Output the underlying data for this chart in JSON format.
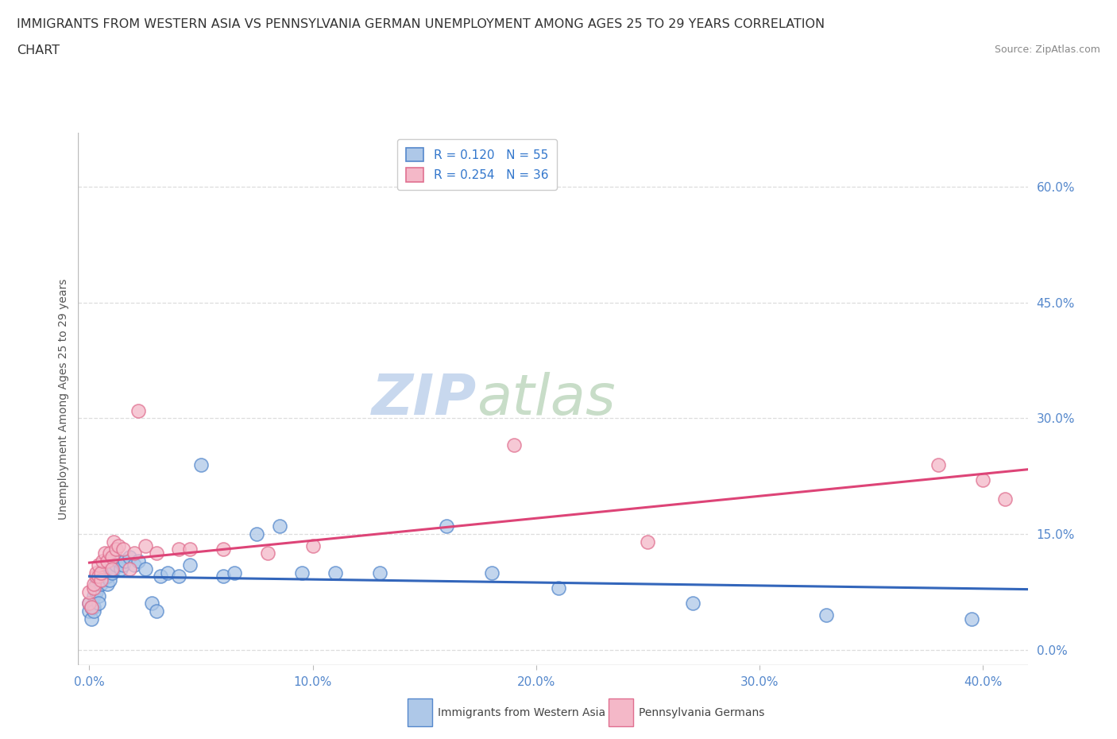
{
  "title_line1": "IMMIGRANTS FROM WESTERN ASIA VS PENNSYLVANIA GERMAN UNEMPLOYMENT AMONG AGES 25 TO 29 YEARS CORRELATION",
  "title_line2": "CHART",
  "source_text": "Source: ZipAtlas.com",
  "xlabel_ticks": [
    "0.0%",
    "10.0%",
    "20.0%",
    "30.0%",
    "40.0%"
  ],
  "xlabel_tick_vals": [
    0.0,
    0.1,
    0.2,
    0.3,
    0.4
  ],
  "ylabel_ticks": [
    "0.0%",
    "15.0%",
    "30.0%",
    "45.0%",
    "60.0%"
  ],
  "ylabel_tick_vals": [
    0.0,
    0.15,
    0.3,
    0.45,
    0.6
  ],
  "ylabel_label": "Unemployment Among Ages 25 to 29 years",
  "xlim": [
    -0.005,
    0.42
  ],
  "ylim": [
    -0.02,
    0.67
  ],
  "watermark_zip": "ZIP",
  "watermark_atlas": "atlas",
  "legend_r1": "R = 0.120",
  "legend_n1": "N = 55",
  "legend_r2": "R = 0.254",
  "legend_n2": "N = 36",
  "blue_fill": "#aec8e8",
  "pink_fill": "#f4b8c8",
  "blue_edge": "#5588cc",
  "pink_edge": "#e07090",
  "blue_line": "#3366bb",
  "pink_line": "#dd4477",
  "legend_text_color": "#333366",
  "legend_n_color": "#3377cc",
  "blue_scatter": [
    [
      0.0,
      0.06
    ],
    [
      0.0,
      0.05
    ],
    [
      0.001,
      0.055
    ],
    [
      0.001,
      0.04
    ],
    [
      0.002,
      0.07
    ],
    [
      0.002,
      0.055
    ],
    [
      0.002,
      0.05
    ],
    [
      0.003,
      0.08
    ],
    [
      0.003,
      0.075
    ],
    [
      0.003,
      0.085
    ],
    [
      0.004,
      0.09
    ],
    [
      0.004,
      0.07
    ],
    [
      0.004,
      0.06
    ],
    [
      0.005,
      0.1
    ],
    [
      0.005,
      0.085
    ],
    [
      0.005,
      0.095
    ],
    [
      0.006,
      0.095
    ],
    [
      0.006,
      0.09
    ],
    [
      0.007,
      0.095
    ],
    [
      0.007,
      0.1
    ],
    [
      0.008,
      0.085
    ],
    [
      0.008,
      0.095
    ],
    [
      0.009,
      0.09
    ],
    [
      0.01,
      0.105
    ],
    [
      0.01,
      0.1
    ],
    [
      0.011,
      0.105
    ],
    [
      0.012,
      0.11
    ],
    [
      0.013,
      0.115
    ],
    [
      0.014,
      0.105
    ],
    [
      0.015,
      0.11
    ],
    [
      0.016,
      0.115
    ],
    [
      0.018,
      0.12
    ],
    [
      0.02,
      0.11
    ],
    [
      0.022,
      0.115
    ],
    [
      0.025,
      0.105
    ],
    [
      0.028,
      0.06
    ],
    [
      0.03,
      0.05
    ],
    [
      0.032,
      0.095
    ],
    [
      0.035,
      0.1
    ],
    [
      0.04,
      0.095
    ],
    [
      0.045,
      0.11
    ],
    [
      0.05,
      0.24
    ],
    [
      0.06,
      0.095
    ],
    [
      0.065,
      0.1
    ],
    [
      0.075,
      0.15
    ],
    [
      0.085,
      0.16
    ],
    [
      0.095,
      0.1
    ],
    [
      0.11,
      0.1
    ],
    [
      0.13,
      0.1
    ],
    [
      0.16,
      0.16
    ],
    [
      0.18,
      0.1
    ],
    [
      0.21,
      0.08
    ],
    [
      0.27,
      0.06
    ],
    [
      0.33,
      0.045
    ],
    [
      0.395,
      0.04
    ]
  ],
  "pink_scatter": [
    [
      0.0,
      0.06
    ],
    [
      0.0,
      0.075
    ],
    [
      0.001,
      0.055
    ],
    [
      0.002,
      0.08
    ],
    [
      0.002,
      0.085
    ],
    [
      0.003,
      0.095
    ],
    [
      0.003,
      0.1
    ],
    [
      0.004,
      0.095
    ],
    [
      0.004,
      0.11
    ],
    [
      0.005,
      0.09
    ],
    [
      0.005,
      0.1
    ],
    [
      0.006,
      0.115
    ],
    [
      0.007,
      0.125
    ],
    [
      0.008,
      0.115
    ],
    [
      0.009,
      0.125
    ],
    [
      0.01,
      0.12
    ],
    [
      0.01,
      0.105
    ],
    [
      0.011,
      0.14
    ],
    [
      0.012,
      0.13
    ],
    [
      0.013,
      0.135
    ],
    [
      0.015,
      0.13
    ],
    [
      0.018,
      0.105
    ],
    [
      0.02,
      0.125
    ],
    [
      0.022,
      0.31
    ],
    [
      0.025,
      0.135
    ],
    [
      0.03,
      0.125
    ],
    [
      0.04,
      0.13
    ],
    [
      0.045,
      0.13
    ],
    [
      0.06,
      0.13
    ],
    [
      0.08,
      0.125
    ],
    [
      0.1,
      0.135
    ],
    [
      0.19,
      0.265
    ],
    [
      0.25,
      0.14
    ],
    [
      0.38,
      0.24
    ],
    [
      0.4,
      0.22
    ],
    [
      0.41,
      0.195
    ]
  ],
  "grid_color": "#dddddd",
  "background_color": "#ffffff",
  "title_fontsize": 11.5,
  "axis_label_fontsize": 10,
  "tick_fontsize": 11,
  "legend_fontsize": 11,
  "watermark_fontsize_zip": 52,
  "watermark_fontsize_atlas": 52
}
